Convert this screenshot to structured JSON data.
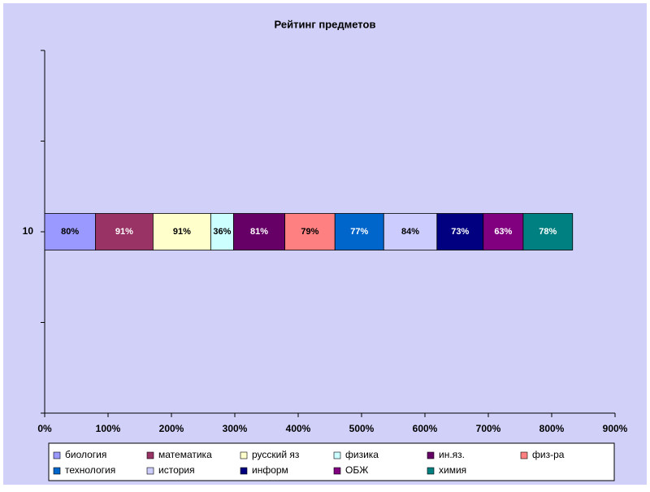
{
  "chart_data": {
    "type": "stacked-bar-horizontal",
    "title": "Рейтинг предметов",
    "categories": [
      "10"
    ],
    "series": [
      {
        "name": "биология",
        "color": "#9999ff",
        "values": [
          80
        ],
        "value_labels": [
          "80%"
        ]
      },
      {
        "name": "математика",
        "color": "#993366",
        "values": [
          91
        ],
        "value_labels": [
          "91%"
        ]
      },
      {
        "name": "русский яз",
        "color": "#ffffcc",
        "values": [
          91
        ],
        "value_labels": [
          "91%"
        ]
      },
      {
        "name": "физика",
        "color": "#ccffff",
        "values": [
          36
        ],
        "value_labels": [
          "36%"
        ]
      },
      {
        "name": "ин.яз.",
        "color": "#660066",
        "values": [
          81
        ],
        "value_labels": [
          "81%"
        ]
      },
      {
        "name": "физ-ра",
        "color": "#ff8080",
        "values": [
          79
        ],
        "value_labels": [
          "79%"
        ]
      },
      {
        "name": "технология",
        "color": "#0066cc",
        "values": [
          77
        ],
        "value_labels": [
          "77%"
        ]
      },
      {
        "name": "история",
        "color": "#ccccff",
        "values": [
          84
        ],
        "value_labels": [
          "84%"
        ]
      },
      {
        "name": "информ",
        "color": "#000080",
        "values": [
          73
        ],
        "value_labels": [
          "73%"
        ]
      },
      {
        "name": "ОБЖ",
        "color": "#800080",
        "values": [
          63
        ],
        "value_labels": [
          "63%"
        ]
      },
      {
        "name": "химия",
        "color": "#008080",
        "values": [
          78
        ],
        "value_labels": [
          "78%"
        ]
      }
    ],
    "xlim": [
      0,
      900
    ],
    "xticks": [
      {
        "value": 0,
        "label": "0%"
      },
      {
        "value": 100,
        "label": "100%"
      },
      {
        "value": 200,
        "label": "200%"
      },
      {
        "value": 300,
        "label": "300%"
      },
      {
        "value": 400,
        "label": "400%"
      },
      {
        "value": 500,
        "label": "500%"
      },
      {
        "value": 600,
        "label": "600%"
      },
      {
        "value": 700,
        "label": "700%"
      },
      {
        "value": 800,
        "label": "800%"
      },
      {
        "value": 900,
        "label": "900%"
      }
    ],
    "legend": "bottom"
  }
}
